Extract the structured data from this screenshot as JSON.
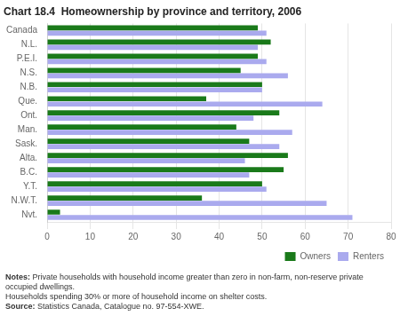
{
  "chart_data": {
    "type": "bar",
    "orientation": "horizontal",
    "title": "Chart 18.4  Homeownership by province and territory, 2006",
    "categories": [
      "Nvt.",
      "N.W.T.",
      "Y.T.",
      "B.C.",
      "Alta.",
      "Sask.",
      "Man.",
      "Ont.",
      "Que.",
      "N.B.",
      "N.S.",
      "P.E.I.",
      "N.L.",
      "Canada"
    ],
    "series": [
      {
        "name": "Owners",
        "color": "#1a7a1a",
        "values": [
          3,
          36,
          50,
          55,
          56,
          47,
          44,
          54,
          37,
          50,
          45,
          49,
          52,
          49
        ]
      },
      {
        "name": "Renters",
        "color": "#aaaaee",
        "values": [
          71,
          65,
          51,
          47,
          46,
          54,
          57,
          48,
          64,
          50,
          56,
          51,
          49,
          51
        ]
      }
    ],
    "xlim": [
      0,
      80
    ],
    "xticks": [
      0,
      10,
      20,
      30,
      40,
      50,
      60,
      70,
      80
    ],
    "grid": true,
    "legend": "lower right",
    "annotations": [
      "Notes: Private households with household income greater than zero in non-farm, non-reserve private occupied dwellings.",
      "Households spending 30% or more of household income on shelter costs.",
      "Source: Statistics Canada, Catalogue no. 97-554-XWE."
    ]
  }
}
